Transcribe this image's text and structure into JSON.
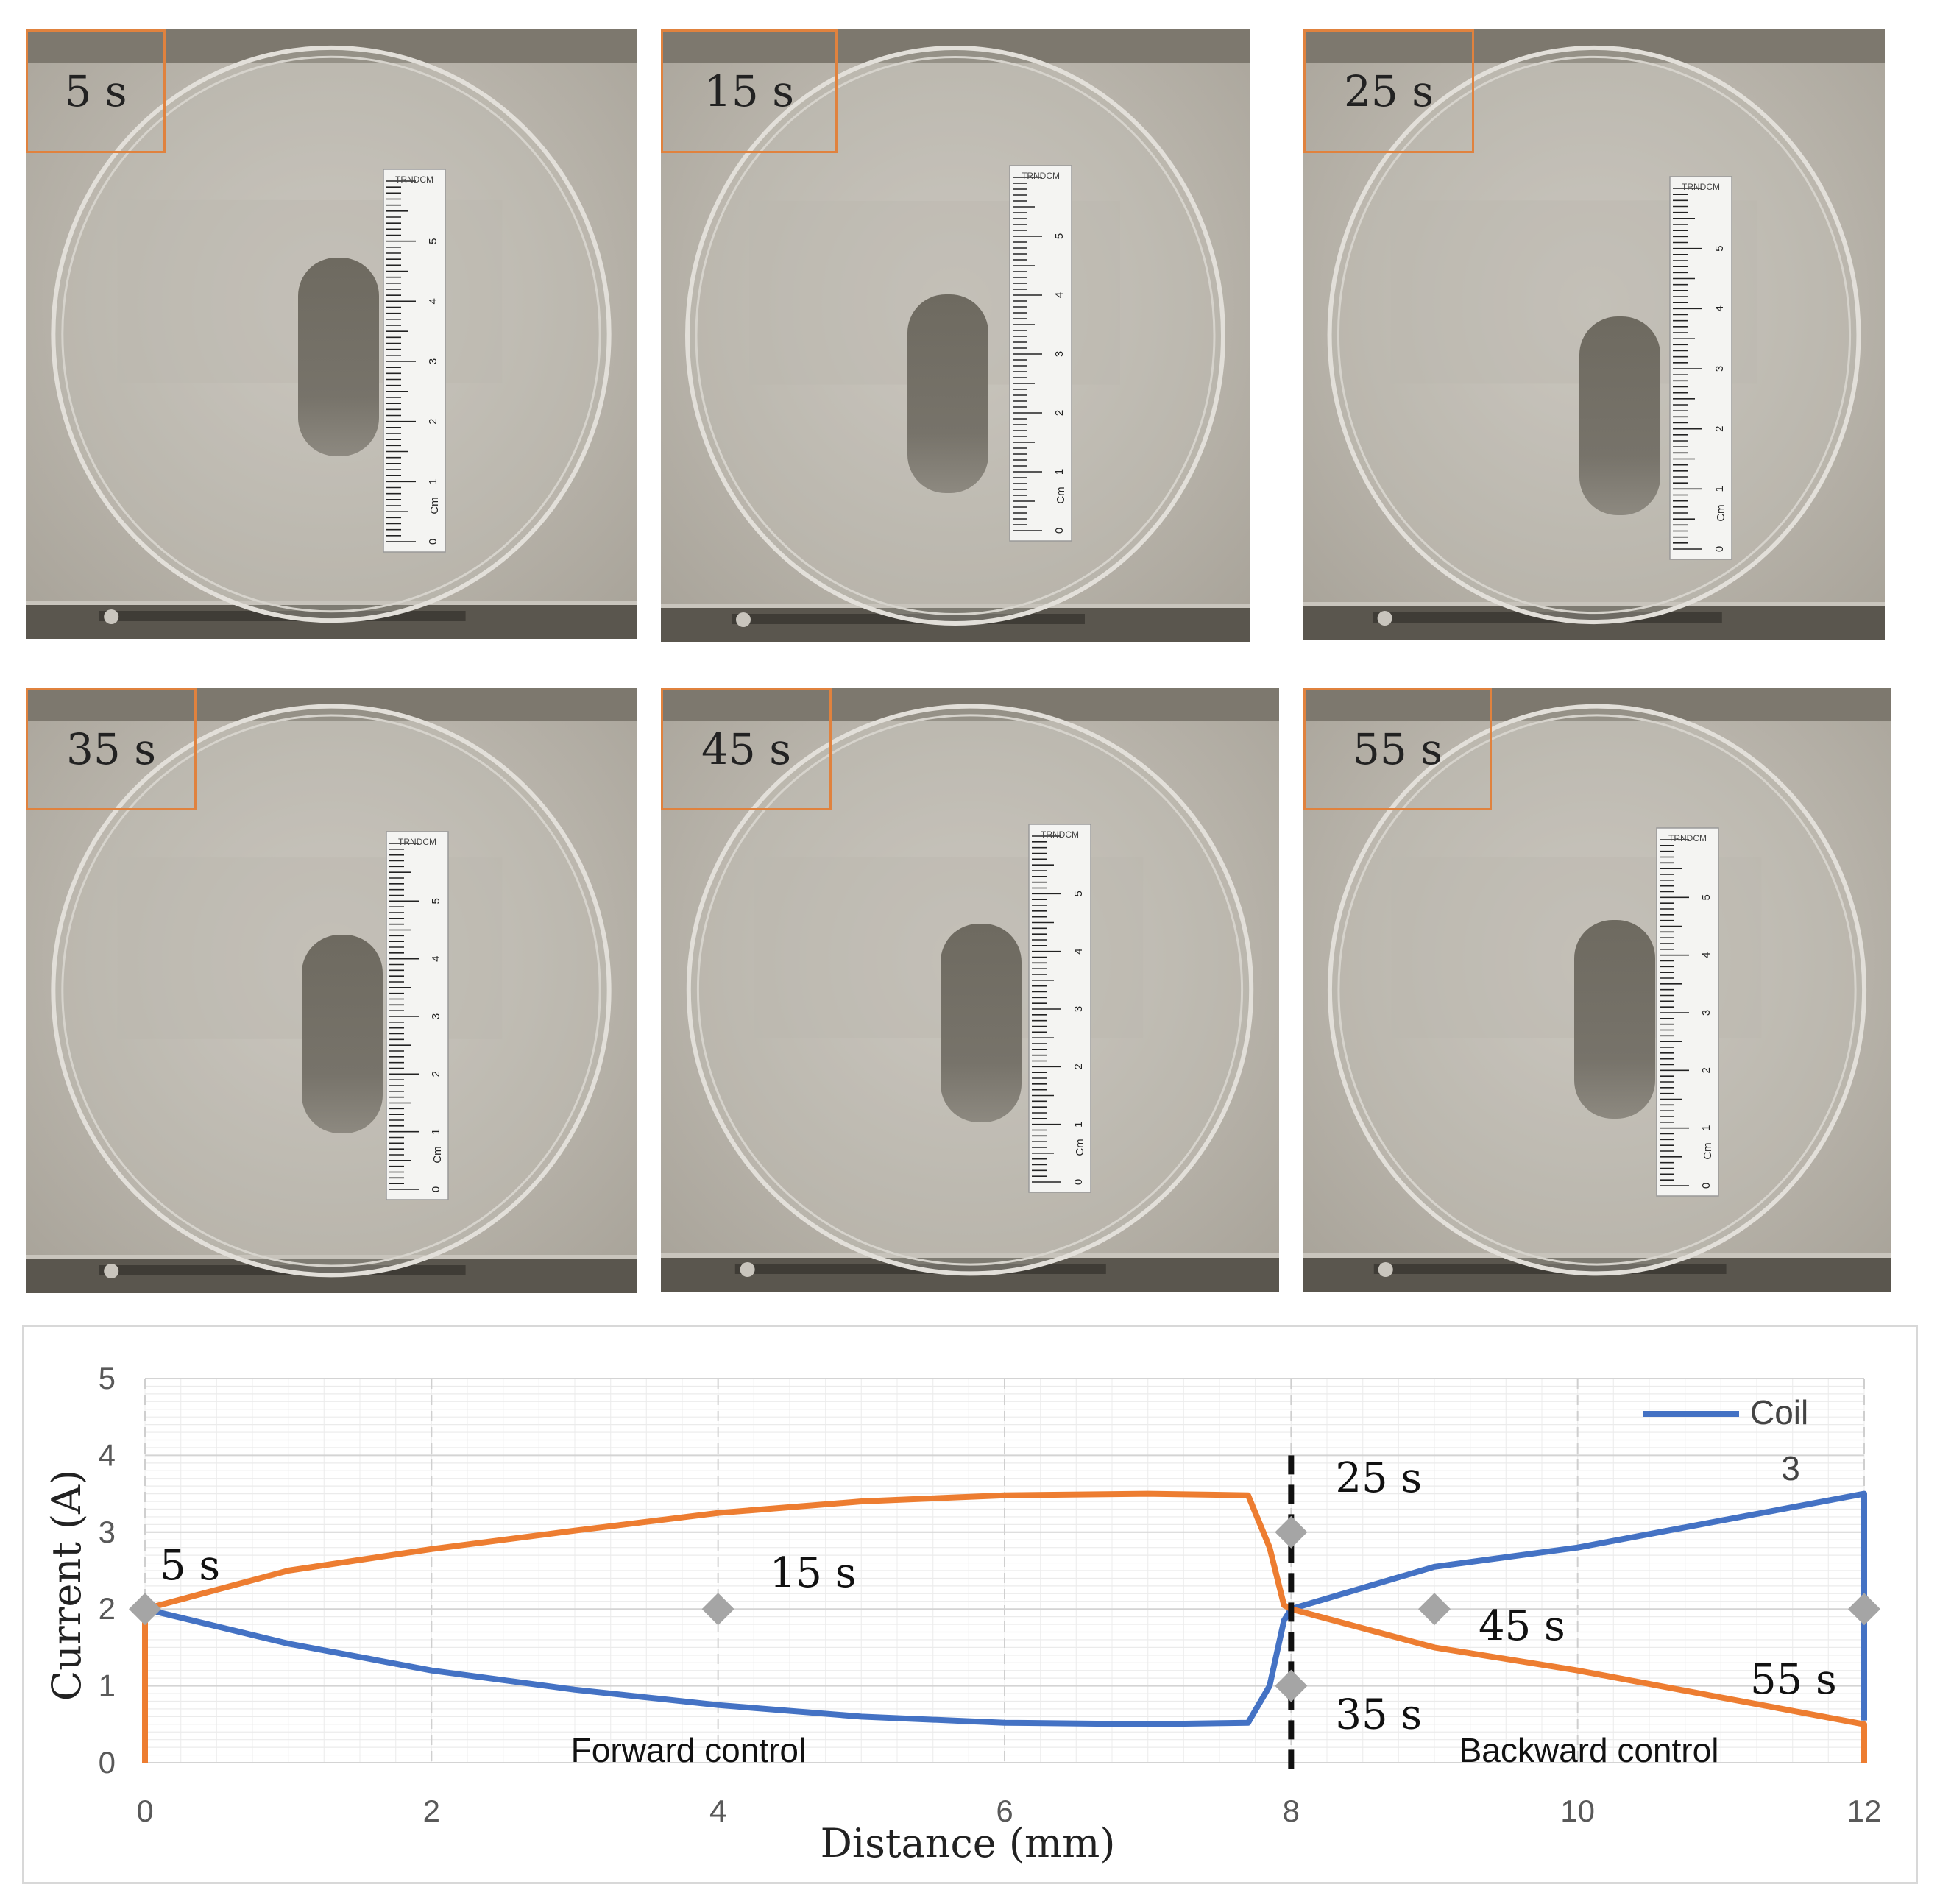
{
  "photos": [
    {
      "time_label": "5 s"
    },
    {
      "time_label": "15 s"
    },
    {
      "time_label": "25 s"
    },
    {
      "time_label": "35 s"
    },
    {
      "time_label": "45 s"
    },
    {
      "time_label": "55 s"
    }
  ],
  "ruler": {
    "brand": "TRNDCM",
    "unit": "Cm",
    "ticks": [
      "0",
      "1",
      "2",
      "3",
      "4",
      "5"
    ]
  },
  "colors": {
    "coil_blue": "#4472c4",
    "orange": "#ed7d31",
    "marker_gray": "#a5a5a5",
    "frame_orange": "#e0823e"
  },
  "chart_data": {
    "type": "line",
    "xlabel": "Distance (mm)",
    "ylabel": "Current (A)",
    "xlim": [
      0,
      12
    ],
    "ylim": [
      0,
      5
    ],
    "xticks": [
      0,
      2,
      4,
      6,
      8,
      10,
      12
    ],
    "yticks": [
      0,
      1,
      2,
      3,
      4,
      5
    ],
    "grid": true,
    "legend": {
      "position": "top-right",
      "entries": [
        "Coil",
        "3"
      ]
    },
    "series": [
      {
        "name": "Coil 3",
        "color": "#4472c4",
        "x": [
          0,
          1,
          2,
          3,
          4,
          5,
          6,
          7,
          7.7,
          7.85,
          7.95,
          8,
          9,
          10,
          11,
          12,
          12
        ],
        "y": [
          2,
          1.55,
          1.2,
          0.95,
          0.75,
          0.6,
          0.52,
          0.5,
          0.52,
          1,
          1.85,
          2,
          2.55,
          2.8,
          3.15,
          3.5,
          0.55
        ]
      },
      {
        "x": [
          0,
          0,
          1,
          2,
          3,
          4,
          5,
          6,
          7,
          7.7,
          7.85,
          7.95,
          8,
          9,
          10,
          11,
          12,
          12
        ],
        "y": [
          0,
          2,
          2.5,
          2.78,
          3.02,
          3.25,
          3.4,
          3.48,
          3.5,
          3.48,
          2.8,
          2.05,
          2,
          1.5,
          1.2,
          0.85,
          0.5,
          0
        ],
        "color": "#ed7d31"
      }
    ],
    "markers": [
      {
        "x": 0,
        "y": 2,
        "label": "5 s"
      },
      {
        "x": 4,
        "y": 2,
        "label": "15 s"
      },
      {
        "x": 8,
        "y": 3,
        "label": "25 s"
      },
      {
        "x": 8,
        "y": 1,
        "label": "35 s"
      },
      {
        "x": 9,
        "y": 2,
        "label": "45 s"
      },
      {
        "x": 12,
        "y": 2,
        "label": "55 s"
      }
    ],
    "divider_x": 8,
    "annotations": [
      {
        "text": "Forward control",
        "x": 4,
        "y": 0.2
      },
      {
        "text": "Backward control",
        "x": 10.2,
        "y": 0.2
      }
    ]
  }
}
